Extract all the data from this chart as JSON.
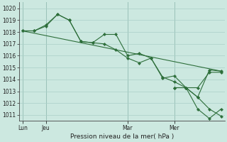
{
  "title": "Pression niveau de la mer( hPa )",
  "bg_color": "#cce8e0",
  "grid_color": "#aacfc8",
  "line_color": "#2d6e3a",
  "ylim": [
    1010.5,
    1020.5
  ],
  "yticks": [
    1011,
    1012,
    1013,
    1014,
    1015,
    1016,
    1017,
    1018,
    1019,
    1020
  ],
  "xtick_labels": [
    "Lun",
    "Jeu",
    "Mar",
    "Mer"
  ],
  "xtick_pos": [
    0,
    2,
    9,
    13
  ],
  "xlim": [
    -0.3,
    17.3
  ],
  "series_jagged1": {
    "x": [
      0,
      1,
      2,
      3,
      4,
      5,
      6,
      7,
      8,
      9,
      10,
      11,
      12,
      13,
      14,
      15,
      16,
      17
    ],
    "y": [
      1018.1,
      1018.1,
      1018.6,
      1019.5,
      1019.0,
      1017.2,
      1017.1,
      1017.8,
      1017.8,
      1016.0,
      1016.2,
      1015.8,
      1014.1,
      1014.3,
      1013.3,
      1013.3,
      1014.6,
      1014.6
    ]
  },
  "series_jagged2": {
    "x": [
      0,
      1,
      2,
      3,
      4,
      5,
      6,
      7,
      8,
      9,
      10,
      11,
      12,
      13,
      14,
      15,
      16,
      17
    ],
    "y": [
      1018.1,
      1018.1,
      1018.5,
      1019.5,
      1019.0,
      1017.2,
      1017.1,
      1017.0,
      1016.5,
      1015.8,
      1015.4,
      1015.8,
      1014.2,
      1013.8,
      1013.3,
      1012.5,
      1011.5,
      1010.9
    ]
  },
  "series_diagonal": {
    "x": [
      0,
      17
    ],
    "y": [
      1018.1,
      1014.7
    ]
  },
  "series_right_upper": {
    "x": [
      13,
      14,
      15,
      16,
      17
    ],
    "y": [
      1013.3,
      1013.3,
      1012.5,
      1014.8,
      1014.7
    ]
  },
  "series_right_lower": {
    "x": [
      13,
      14,
      15,
      16,
      17
    ],
    "y": [
      1013.3,
      1013.3,
      1011.5,
      1010.7,
      1011.5
    ]
  }
}
